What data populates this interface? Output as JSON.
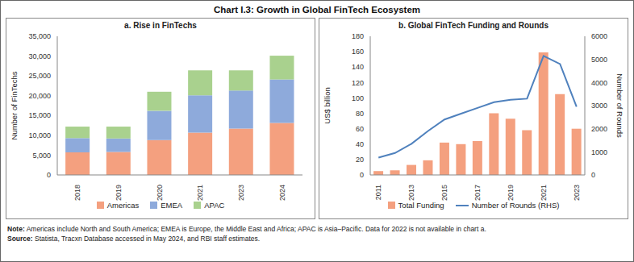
{
  "title": "Chart I.3: Growth in Global FinTech Ecosystem",
  "note_label": "Note:",
  "note": "Americas include North and South America; EMEA is Europe, the Middle East and Africa; APAC is Asia–Pacific. Data for 2022 is not available in chart a.",
  "source_label": "Source:",
  "source": "Statista, Tracxn Database accessed in May 2024, and RBI staff estimates.",
  "chart_data": [
    {
      "type": "bar",
      "title": "a. Rise in FinTechs",
      "ylabel": "Number of FinTechs",
      "categories": [
        "2018",
        "2019",
        "2020",
        "2021",
        "2023",
        "2024"
      ],
      "stacked": true,
      "grid": false,
      "legend": "bottom",
      "ylim": [
        0,
        35000
      ],
      "yticks": [
        0,
        {
          "value": 5000,
          "label": "5,000"
        },
        {
          "value": 10000,
          "label": "10,000"
        },
        {
          "value": 15000,
          "label": "15,000"
        },
        {
          "value": 20000,
          "label": "20,000"
        },
        {
          "value": 25000,
          "label": "25,000"
        },
        {
          "value": 30000,
          "label": "30,000"
        },
        {
          "value": 35000,
          "label": "35,000"
        }
      ],
      "series": [
        {
          "name": "Americas",
          "color": "#f4a07f",
          "values": [
            5700,
            5800,
            8800,
            10700,
            11700,
            13100
          ]
        },
        {
          "name": "EMEA",
          "color": "#8eaadb",
          "values": [
            3600,
            3400,
            7400,
            9400,
            9600,
            11000
          ]
        },
        {
          "name": "APAC",
          "color": "#a9d18e",
          "values": [
            2900,
            3000,
            4800,
            6300,
            5100,
            6000
          ]
        }
      ]
    },
    {
      "type": "bar",
      "title": "b. Global FinTech Funding and Rounds",
      "ylabel": "US$ billion",
      "y2label": "Number of Rounds",
      "categories": [
        "2011",
        null,
        "2013",
        null,
        "2015",
        null,
        "2017",
        null,
        "2019",
        null,
        "2021",
        null,
        "2023"
      ],
      "grid": false,
      "legend": "bottom",
      "ylim": [
        0,
        180
      ],
      "yticks": [
        0,
        20,
        40,
        60,
        80,
        100,
        120,
        140,
        160,
        180
      ],
      "y2lim": [
        0,
        6000
      ],
      "y2ticks": [
        0,
        1000,
        2000,
        3000,
        4000,
        5000,
        6000
      ],
      "series": [
        {
          "name": "Total Funding",
          "type": "bar",
          "color": "#f4a07f",
          "values": [
            5,
            6,
            13,
            19,
            42,
            40,
            44,
            80,
            73,
            58,
            159,
            105,
            60
          ]
        },
        {
          "name": "Number of Rounds (RHS)",
          "type": "line",
          "axis": "y2",
          "color": "#4f81bd",
          "values": [
            750,
            950,
            1350,
            1900,
            2400,
            2650,
            2900,
            3150,
            3250,
            3300,
            5150,
            4800,
            2950
          ]
        }
      ]
    }
  ]
}
